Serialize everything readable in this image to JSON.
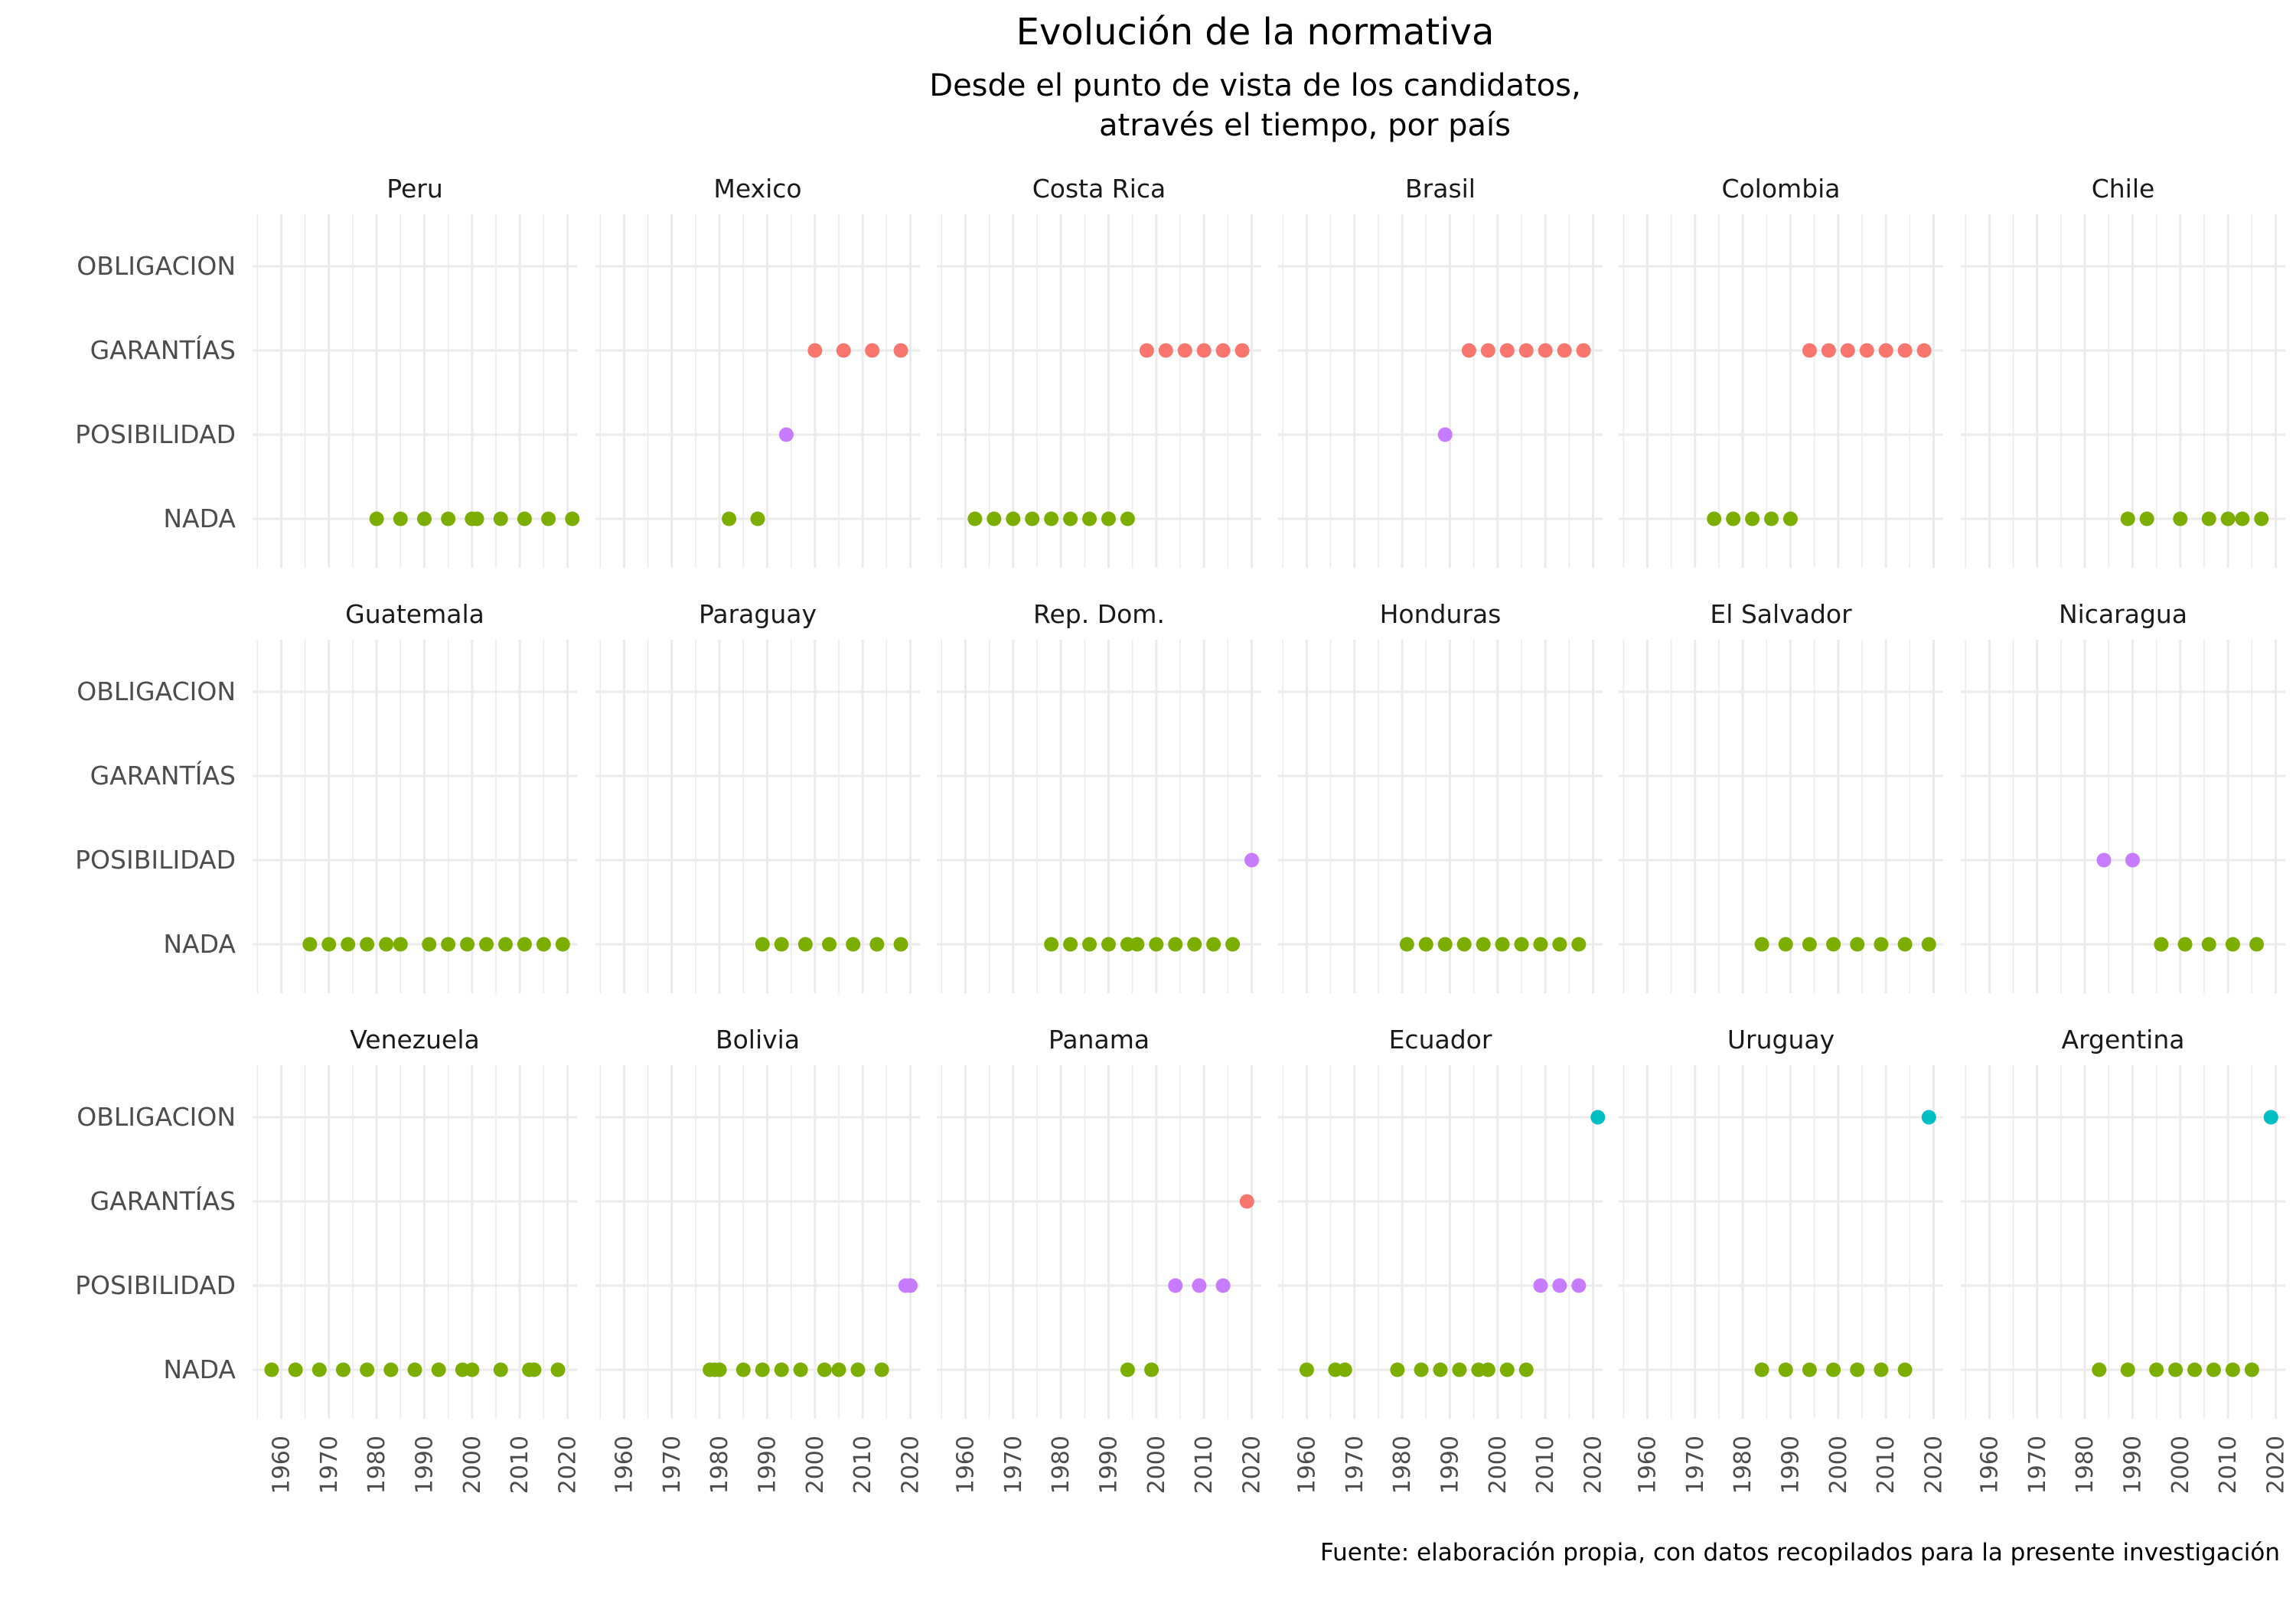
{
  "chart_data": {
    "type": "scatter",
    "title": "Evolución de la normativa",
    "subtitle": [
      "Desde el punto de vista de los candidatos,",
      "através el tiempo, por país"
    ],
    "caption": "Fuente: elaboración propia, con datos recopilados para la presente investigación",
    "categories": [
      "NADA",
      "POSIBILIDAD",
      "GARANTÍAS",
      "OBLIGACION"
    ],
    "xlim": [
      1954,
      2022
    ],
    "x_ticks": [
      1960,
      1970,
      1980,
      1990,
      2000,
      2010,
      2020
    ],
    "grid": true,
    "legend": "none",
    "colors": {
      "NADA": "#7cae00",
      "POSIBILIDAD": "#c77cff",
      "GARANTÍAS": "#f8766d",
      "OBLIGACION": "#00bfc4"
    },
    "panels": [
      {
        "country": "Peru",
        "points": [
          {
            "x": 1980,
            "y": "NADA"
          },
          {
            "x": 1985,
            "y": "NADA"
          },
          {
            "x": 1990,
            "y": "NADA"
          },
          {
            "x": 1995,
            "y": "NADA"
          },
          {
            "x": 2000,
            "y": "NADA"
          },
          {
            "x": 2001,
            "y": "NADA"
          },
          {
            "x": 2006,
            "y": "NADA"
          },
          {
            "x": 2011,
            "y": "NADA"
          },
          {
            "x": 2016,
            "y": "NADA"
          },
          {
            "x": 2021,
            "y": "NADA"
          }
        ]
      },
      {
        "country": "Mexico",
        "points": [
          {
            "x": 1982,
            "y": "NADA"
          },
          {
            "x": 1988,
            "y": "NADA"
          },
          {
            "x": 1994,
            "y": "POSIBILIDAD"
          },
          {
            "x": 2000,
            "y": "GARANTÍAS"
          },
          {
            "x": 2006,
            "y": "GARANTÍAS"
          },
          {
            "x": 2012,
            "y": "GARANTÍAS"
          },
          {
            "x": 2018,
            "y": "GARANTÍAS"
          }
        ]
      },
      {
        "country": "Costa Rica",
        "points": [
          {
            "x": 1962,
            "y": "NADA"
          },
          {
            "x": 1966,
            "y": "NADA"
          },
          {
            "x": 1970,
            "y": "NADA"
          },
          {
            "x": 1974,
            "y": "NADA"
          },
          {
            "x": 1978,
            "y": "NADA"
          },
          {
            "x": 1982,
            "y": "NADA"
          },
          {
            "x": 1986,
            "y": "NADA"
          },
          {
            "x": 1990,
            "y": "NADA"
          },
          {
            "x": 1994,
            "y": "NADA"
          },
          {
            "x": 1998,
            "y": "GARANTÍAS"
          },
          {
            "x": 2002,
            "y": "GARANTÍAS"
          },
          {
            "x": 2006,
            "y": "GARANTÍAS"
          },
          {
            "x": 2010,
            "y": "GARANTÍAS"
          },
          {
            "x": 2014,
            "y": "GARANTÍAS"
          },
          {
            "x": 2018,
            "y": "GARANTÍAS"
          }
        ]
      },
      {
        "country": "Brasil",
        "points": [
          {
            "x": 1989,
            "y": "POSIBILIDAD"
          },
          {
            "x": 1994,
            "y": "GARANTÍAS"
          },
          {
            "x": 1998,
            "y": "GARANTÍAS"
          },
          {
            "x": 2002,
            "y": "GARANTÍAS"
          },
          {
            "x": 2006,
            "y": "GARANTÍAS"
          },
          {
            "x": 2010,
            "y": "GARANTÍAS"
          },
          {
            "x": 2014,
            "y": "GARANTÍAS"
          },
          {
            "x": 2018,
            "y": "GARANTÍAS"
          }
        ]
      },
      {
        "country": "Colombia",
        "points": [
          {
            "x": 1974,
            "y": "NADA"
          },
          {
            "x": 1978,
            "y": "NADA"
          },
          {
            "x": 1982,
            "y": "NADA"
          },
          {
            "x": 1986,
            "y": "NADA"
          },
          {
            "x": 1990,
            "y": "NADA"
          },
          {
            "x": 1994,
            "y": "GARANTÍAS"
          },
          {
            "x": 1998,
            "y": "GARANTÍAS"
          },
          {
            "x": 2002,
            "y": "GARANTÍAS"
          },
          {
            "x": 2006,
            "y": "GARANTÍAS"
          },
          {
            "x": 2010,
            "y": "GARANTÍAS"
          },
          {
            "x": 2014,
            "y": "GARANTÍAS"
          },
          {
            "x": 2018,
            "y": "GARANTÍAS"
          }
        ]
      },
      {
        "country": "Chile",
        "points": [
          {
            "x": 1989,
            "y": "NADA"
          },
          {
            "x": 1993,
            "y": "NADA"
          },
          {
            "x": 2000,
            "y": "NADA"
          },
          {
            "x": 2006,
            "y": "NADA"
          },
          {
            "x": 2010,
            "y": "NADA"
          },
          {
            "x": 2013,
            "y": "NADA"
          },
          {
            "x": 2017,
            "y": "NADA"
          }
        ]
      },
      {
        "country": "Guatemala",
        "points": [
          {
            "x": 1966,
            "y": "NADA"
          },
          {
            "x": 1970,
            "y": "NADA"
          },
          {
            "x": 1974,
            "y": "NADA"
          },
          {
            "x": 1978,
            "y": "NADA"
          },
          {
            "x": 1982,
            "y": "NADA"
          },
          {
            "x": 1985,
            "y": "NADA"
          },
          {
            "x": 1991,
            "y": "NADA"
          },
          {
            "x": 1995,
            "y": "NADA"
          },
          {
            "x": 1999,
            "y": "NADA"
          },
          {
            "x": 2003,
            "y": "NADA"
          },
          {
            "x": 2007,
            "y": "NADA"
          },
          {
            "x": 2011,
            "y": "NADA"
          },
          {
            "x": 2015,
            "y": "NADA"
          },
          {
            "x": 2019,
            "y": "NADA"
          }
        ]
      },
      {
        "country": "Paraguay",
        "points": [
          {
            "x": 1989,
            "y": "NADA"
          },
          {
            "x": 1993,
            "y": "NADA"
          },
          {
            "x": 1998,
            "y": "NADA"
          },
          {
            "x": 2003,
            "y": "NADA"
          },
          {
            "x": 2008,
            "y": "NADA"
          },
          {
            "x": 2013,
            "y": "NADA"
          },
          {
            "x": 2018,
            "y": "NADA"
          }
        ]
      },
      {
        "country": "Rep. Dom.",
        "points": [
          {
            "x": 1978,
            "y": "NADA"
          },
          {
            "x": 1982,
            "y": "NADA"
          },
          {
            "x": 1986,
            "y": "NADA"
          },
          {
            "x": 1990,
            "y": "NADA"
          },
          {
            "x": 1994,
            "y": "NADA"
          },
          {
            "x": 1996,
            "y": "NADA"
          },
          {
            "x": 2000,
            "y": "NADA"
          },
          {
            "x": 2004,
            "y": "NADA"
          },
          {
            "x": 2008,
            "y": "NADA"
          },
          {
            "x": 2012,
            "y": "NADA"
          },
          {
            "x": 2016,
            "y": "NADA"
          },
          {
            "x": 2020,
            "y": "POSIBILIDAD"
          }
        ]
      },
      {
        "country": "Honduras",
        "points": [
          {
            "x": 1981,
            "y": "NADA"
          },
          {
            "x": 1985,
            "y": "NADA"
          },
          {
            "x": 1989,
            "y": "NADA"
          },
          {
            "x": 1993,
            "y": "NADA"
          },
          {
            "x": 1997,
            "y": "NADA"
          },
          {
            "x": 2001,
            "y": "NADA"
          },
          {
            "x": 2005,
            "y": "NADA"
          },
          {
            "x": 2009,
            "y": "NADA"
          },
          {
            "x": 2013,
            "y": "NADA"
          },
          {
            "x": 2017,
            "y": "NADA"
          }
        ]
      },
      {
        "country": "El Salvador",
        "points": [
          {
            "x": 1984,
            "y": "NADA"
          },
          {
            "x": 1989,
            "y": "NADA"
          },
          {
            "x": 1994,
            "y": "NADA"
          },
          {
            "x": 1999,
            "y": "NADA"
          },
          {
            "x": 2004,
            "y": "NADA"
          },
          {
            "x": 2009,
            "y": "NADA"
          },
          {
            "x": 2014,
            "y": "NADA"
          },
          {
            "x": 2019,
            "y": "NADA"
          }
        ]
      },
      {
        "country": "Nicaragua",
        "points": [
          {
            "x": 1984,
            "y": "POSIBILIDAD"
          },
          {
            "x": 1990,
            "y": "POSIBILIDAD"
          },
          {
            "x": 1996,
            "y": "NADA"
          },
          {
            "x": 2001,
            "y": "NADA"
          },
          {
            "x": 2006,
            "y": "NADA"
          },
          {
            "x": 2011,
            "y": "NADA"
          },
          {
            "x": 2016,
            "y": "NADA"
          }
        ]
      },
      {
        "country": "Venezuela",
        "points": [
          {
            "x": 1958,
            "y": "NADA"
          },
          {
            "x": 1963,
            "y": "NADA"
          },
          {
            "x": 1968,
            "y": "NADA"
          },
          {
            "x": 1973,
            "y": "NADA"
          },
          {
            "x": 1978,
            "y": "NADA"
          },
          {
            "x": 1983,
            "y": "NADA"
          },
          {
            "x": 1988,
            "y": "NADA"
          },
          {
            "x": 1993,
            "y": "NADA"
          },
          {
            "x": 1998,
            "y": "NADA"
          },
          {
            "x": 2000,
            "y": "NADA"
          },
          {
            "x": 2006,
            "y": "NADA"
          },
          {
            "x": 2012,
            "y": "NADA"
          },
          {
            "x": 2013,
            "y": "NADA"
          },
          {
            "x": 2018,
            "y": "NADA"
          }
        ]
      },
      {
        "country": "Bolivia",
        "points": [
          {
            "x": 1978,
            "y": "NADA"
          },
          {
            "x": 1979,
            "y": "NADA"
          },
          {
            "x": 1980,
            "y": "NADA"
          },
          {
            "x": 1985,
            "y": "NADA"
          },
          {
            "x": 1989,
            "y": "NADA"
          },
          {
            "x": 1993,
            "y": "NADA"
          },
          {
            "x": 1997,
            "y": "NADA"
          },
          {
            "x": 2002,
            "y": "NADA"
          },
          {
            "x": 2005,
            "y": "NADA"
          },
          {
            "x": 2009,
            "y": "NADA"
          },
          {
            "x": 2014,
            "y": "NADA"
          },
          {
            "x": 2019,
            "y": "POSIBILIDAD"
          },
          {
            "x": 2020,
            "y": "POSIBILIDAD"
          }
        ]
      },
      {
        "country": "Panama",
        "points": [
          {
            "x": 1994,
            "y": "NADA"
          },
          {
            "x": 1999,
            "y": "NADA"
          },
          {
            "x": 2004,
            "y": "POSIBILIDAD"
          },
          {
            "x": 2009,
            "y": "POSIBILIDAD"
          },
          {
            "x": 2014,
            "y": "POSIBILIDAD"
          },
          {
            "x": 2019,
            "y": "GARANTÍAS"
          }
        ]
      },
      {
        "country": "Ecuador",
        "points": [
          {
            "x": 1960,
            "y": "NADA"
          },
          {
            "x": 1966,
            "y": "NADA"
          },
          {
            "x": 1968,
            "y": "NADA"
          },
          {
            "x": 1979,
            "y": "NADA"
          },
          {
            "x": 1984,
            "y": "NADA"
          },
          {
            "x": 1988,
            "y": "NADA"
          },
          {
            "x": 1992,
            "y": "NADA"
          },
          {
            "x": 1996,
            "y": "NADA"
          },
          {
            "x": 1998,
            "y": "NADA"
          },
          {
            "x": 2002,
            "y": "NADA"
          },
          {
            "x": 2006,
            "y": "NADA"
          },
          {
            "x": 2009,
            "y": "POSIBILIDAD"
          },
          {
            "x": 2013,
            "y": "POSIBILIDAD"
          },
          {
            "x": 2017,
            "y": "POSIBILIDAD"
          },
          {
            "x": 2021,
            "y": "OBLIGACION"
          }
        ]
      },
      {
        "country": "Uruguay",
        "points": [
          {
            "x": 1984,
            "y": "NADA"
          },
          {
            "x": 1989,
            "y": "NADA"
          },
          {
            "x": 1994,
            "y": "NADA"
          },
          {
            "x": 1999,
            "y": "NADA"
          },
          {
            "x": 2004,
            "y": "NADA"
          },
          {
            "x": 2009,
            "y": "NADA"
          },
          {
            "x": 2014,
            "y": "NADA"
          },
          {
            "x": 2019,
            "y": "OBLIGACION"
          }
        ]
      },
      {
        "country": "Argentina",
        "points": [
          {
            "x": 1983,
            "y": "NADA"
          },
          {
            "x": 1989,
            "y": "NADA"
          },
          {
            "x": 1995,
            "y": "NADA"
          },
          {
            "x": 1999,
            "y": "NADA"
          },
          {
            "x": 2003,
            "y": "NADA"
          },
          {
            "x": 2007,
            "y": "NADA"
          },
          {
            "x": 2011,
            "y": "NADA"
          },
          {
            "x": 2015,
            "y": "NADA"
          },
          {
            "x": 2019,
            "y": "OBLIGACION"
          }
        ]
      }
    ]
  }
}
